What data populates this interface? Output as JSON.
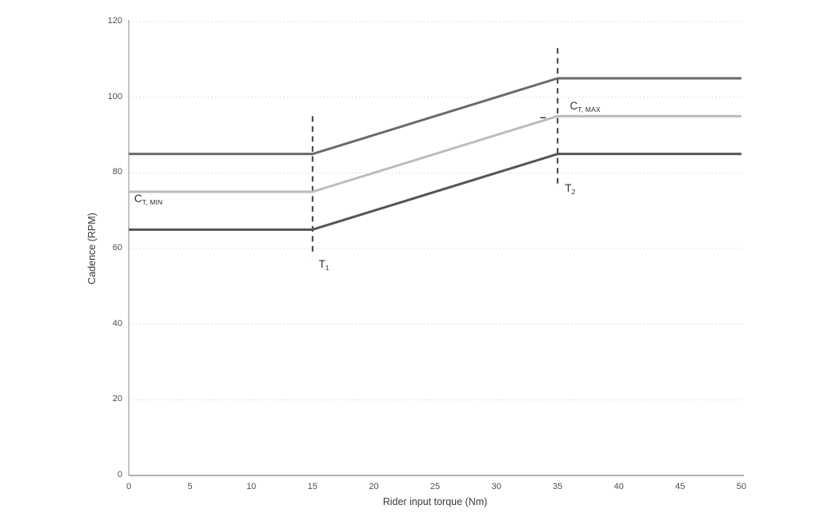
{
  "chart_data": {
    "type": "line",
    "title": "",
    "xlabel": "Rider input torque (Nm)",
    "ylabel": "Cadence (RPM)",
    "xlim": [
      0,
      50
    ],
    "ylim": [
      0,
      120
    ],
    "x_ticks": [
      0,
      5,
      10,
      15,
      20,
      25,
      30,
      35,
      40,
      45,
      50
    ],
    "y_ticks": [
      0,
      20,
      40,
      60,
      80,
      100,
      120
    ],
    "grid": {
      "horizontal": true,
      "vertical": false,
      "style": "dotted",
      "color": "#d4d4d4"
    },
    "axis_color": "#b0b0b0",
    "legend": "none",
    "series": [
      {
        "name": "upper-cadence-limit",
        "color": "#6a6a6a",
        "width": 3,
        "points": [
          [
            0,
            85
          ],
          [
            15,
            85
          ],
          [
            35,
            105
          ],
          [
            50,
            105
          ]
        ]
      },
      {
        "name": "target-cadence",
        "color": "#bcbcbc",
        "width": 3,
        "points": [
          [
            0,
            75
          ],
          [
            15,
            75
          ],
          [
            35,
            95
          ],
          [
            50,
            95
          ]
        ]
      },
      {
        "name": "lower-cadence-limit",
        "color": "#555555",
        "width": 3,
        "points": [
          [
            0,
            65
          ],
          [
            15,
            65
          ],
          [
            35,
            85
          ],
          [
            50,
            85
          ]
        ]
      }
    ],
    "threshold_lines": [
      {
        "name": "t1-threshold",
        "x": 15,
        "y_from": 58,
        "y_to": 95,
        "color": "#3e3e3e"
      },
      {
        "name": "t2-threshold",
        "x": 35,
        "y_from": 76,
        "y_to": 113,
        "color": "#3e3e3e"
      }
    ],
    "annotations": [
      {
        "id": "ct-min-label",
        "main": "C",
        "sub": "T, MIN",
        "x": 0.45,
        "y": 74.8
      },
      {
        "id": "ct-max-label",
        "main": "C",
        "sub": "T, MAX",
        "x": 36.0,
        "y": 99.2
      },
      {
        "id": "t1-label",
        "main": "T",
        "sub": "1",
        "x": 15.5,
        "y": 57.5
      },
      {
        "id": "t2-label",
        "main": "T",
        "sub": "2",
        "x": 35.6,
        "y": 77.5
      },
      {
        "id": "tick-mark-label",
        "main": "–",
        "sub": "",
        "x": 33.55,
        "y": 96.3
      }
    ]
  }
}
